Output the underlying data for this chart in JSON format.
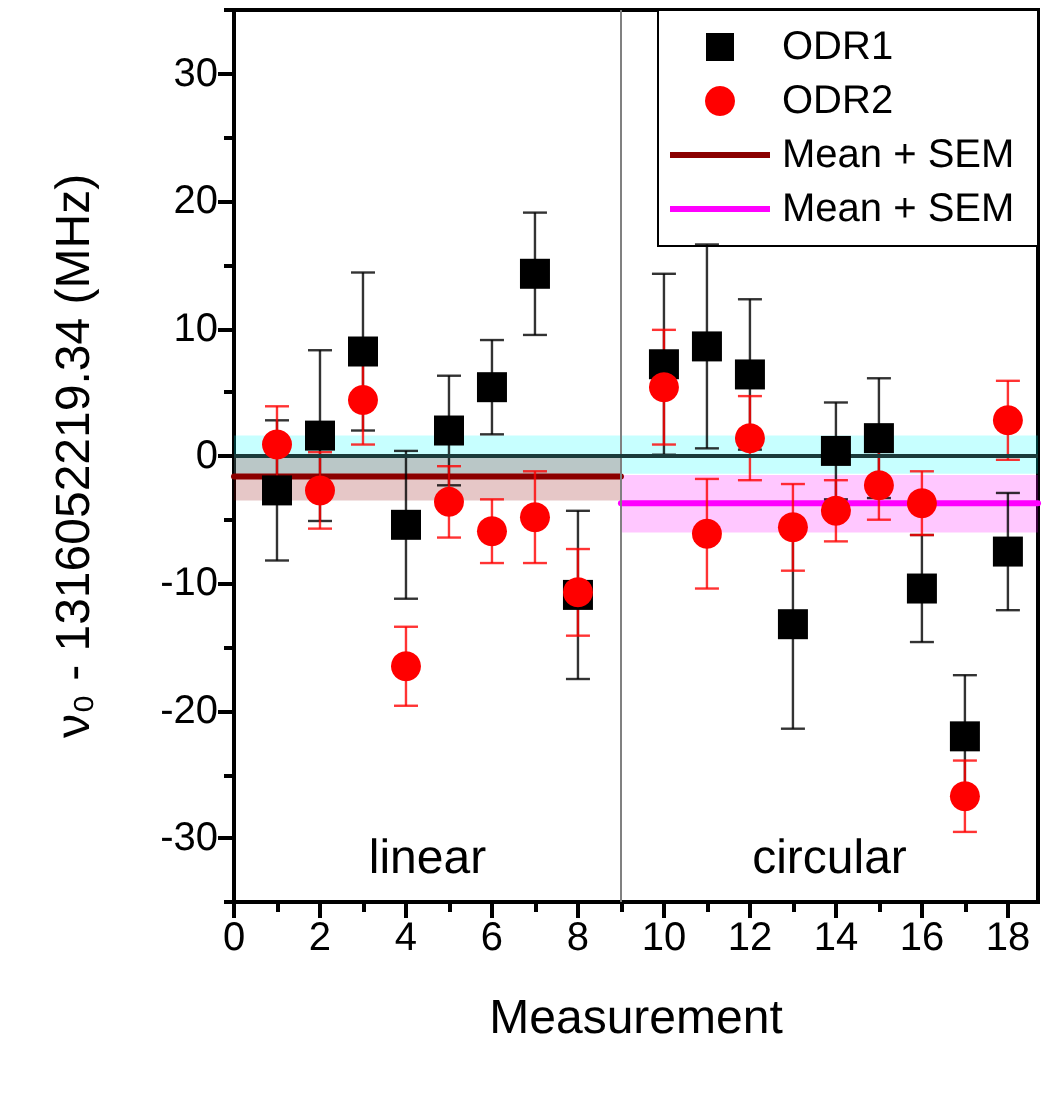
{
  "chart_data": {
    "type": "scatter",
    "xlabel": "Measurement",
    "ylabel": "ν₀ - 1316052219.34 (MHz)",
    "x": [
      1,
      2,
      3,
      4,
      5,
      6,
      7,
      8,
      10,
      11,
      12,
      13,
      14,
      15,
      16,
      17,
      18
    ],
    "xlim": [
      0,
      18.7
    ],
    "xticks": [
      0,
      {
        "value": 1,
        "label": null
      },
      2,
      {
        "value": 3,
        "label": null
      },
      4,
      {
        "value": 5,
        "label": null
      },
      6,
      {
        "value": 7,
        "label": null
      },
      8,
      {
        "value": 9,
        "label": null
      },
      10,
      {
        "value": 11,
        "label": null
      },
      12,
      {
        "value": 13,
        "label": null
      },
      14,
      {
        "value": 15,
        "label": null
      },
      16,
      {
        "value": 17,
        "label": null
      },
      18
    ],
    "ylim": [
      -35,
      35
    ],
    "yticks": [
      {
        "value": -35,
        "label": null
      },
      -30,
      {
        "value": -25,
        "label": null
      },
      -20,
      {
        "value": -15,
        "label": null
      },
      -10,
      {
        "value": -5,
        "label": null
      },
      0,
      {
        "value": 5,
        "label": null
      },
      10,
      {
        "value": 15,
        "label": null
      },
      20,
      {
        "value": 25,
        "label": null
      },
      30,
      {
        "value": 35,
        "label": null
      }
    ],
    "series": [
      {
        "name": "ODR1",
        "marker": "square",
        "color": "#000000",
        "values": [
          -2.7,
          1.6,
          8.2,
          -5.4,
          2.0,
          5.4,
          14.3,
          -10.9,
          7.2,
          8.6,
          6.4,
          -13.2,
          0.4,
          1.4,
          -10.4,
          -22.0,
          -7.5
        ],
        "errors": [
          5.5,
          6.7,
          6.2,
          5.8,
          4.3,
          3.7,
          4.8,
          6.6,
          7.1,
          8.0,
          5.9,
          8.2,
          3.8,
          4.7,
          4.2,
          4.8,
          4.6
        ]
      },
      {
        "name": "ODR2",
        "marker": "circle",
        "color": "#ff0000",
        "values": [
          0.9,
          -2.7,
          4.4,
          -16.5,
          -3.6,
          -5.9,
          -4.8,
          -10.7,
          5.4,
          -6.1,
          1.4,
          -5.6,
          -4.3,
          -2.3,
          -3.7,
          -26.7,
          2.8
        ],
        "errors": [
          3.0,
          3.0,
          3.5,
          3.1,
          2.8,
          2.5,
          3.6,
          3.4,
          4.5,
          4.3,
          3.3,
          3.4,
          2.4,
          2.7,
          2.5,
          2.8,
          3.1
        ]
      },
      {
        "name": "Mean + SEM",
        "type": "line",
        "color": "#8b0000",
        "x": [
          0,
          9
        ],
        "values": [
          -1.6,
          -1.6
        ],
        "lower": [
          -3.5,
          -3.5
        ],
        "upper": [
          0,
          0
        ]
      },
      {
        "name": "Mean + SEM",
        "type": "line",
        "color": "#ff00ff",
        "x": [
          9,
          18.7
        ],
        "values": [
          -3.7,
          -3.7
        ],
        "lower": [
          -6.0,
          -6.0
        ],
        "upper": [
          -1.5,
          -1.5
        ]
      }
    ],
    "bands": [
      {
        "axis": "y",
        "from": -1.4,
        "to": 1.6,
        "color": "#00ffff"
      }
    ],
    "ref_lines": [
      {
        "axis": "x",
        "value": 9,
        "color": "#808080"
      },
      {
        "axis": "y",
        "value": 0,
        "color": "#1a3a3a"
      }
    ],
    "annotations": [
      "linear",
      "circular"
    ],
    "legend": "top right",
    "grid": false
  }
}
